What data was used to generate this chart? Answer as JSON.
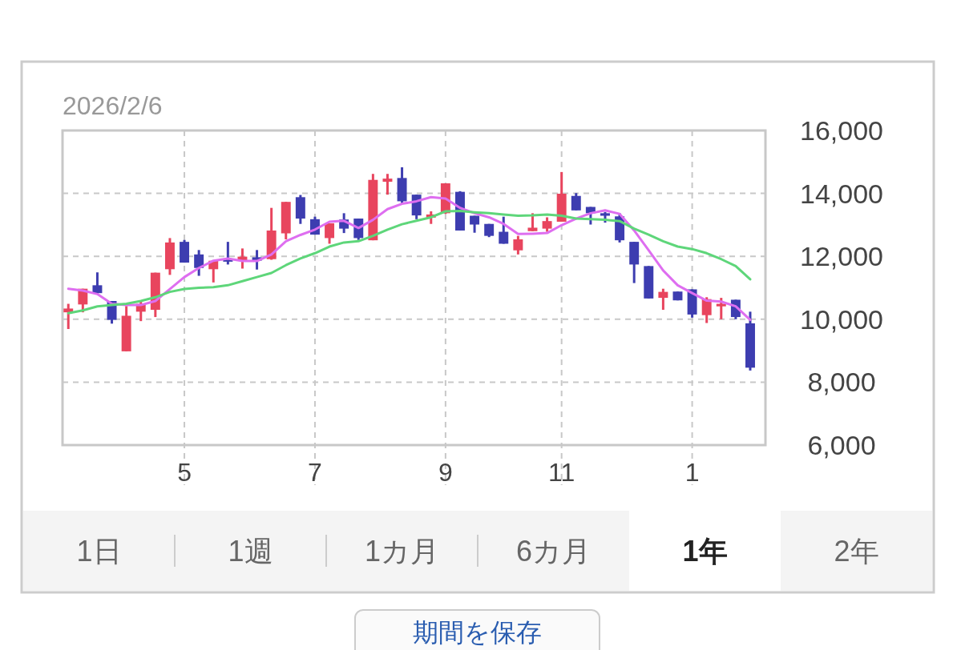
{
  "chart_data": {
    "type": "candlestick",
    "title": "2026/2/6",
    "categories": [
      null,
      null,
      null,
      null,
      null,
      null,
      null,
      null,
      "5",
      null,
      null,
      null,
      null,
      null,
      null,
      null,
      null,
      "7",
      null,
      null,
      null,
      null,
      null,
      null,
      null,
      null,
      "9",
      null,
      null,
      null,
      null,
      null,
      null,
      null,
      "11",
      null,
      null,
      null,
      null,
      null,
      null,
      null,
      null,
      "1",
      null,
      null,
      null,
      null
    ],
    "ohlc": [
      [
        10220,
        10490,
        9690,
        10340
      ],
      [
        10470,
        10970,
        10220,
        10970
      ],
      [
        11080,
        11490,
        10790,
        10830
      ],
      [
        10580,
        10580,
        9860,
        9980
      ],
      [
        8980,
        10420,
        8980,
        10110
      ],
      [
        10240,
        10580,
        9940,
        10490
      ],
      [
        10300,
        11480,
        10070,
        11480
      ],
      [
        11590,
        12580,
        11410,
        12440
      ],
      [
        12460,
        12520,
        11800,
        11800
      ],
      [
        12060,
        12200,
        11380,
        11630
      ],
      [
        11590,
        11860,
        11170,
        11860
      ],
      [
        11910,
        12460,
        11740,
        11830
      ],
      [
        11860,
        12250,
        11610,
        11990
      ],
      [
        11970,
        12200,
        11580,
        11860
      ],
      [
        11910,
        13540,
        11890,
        12820
      ],
      [
        12730,
        13730,
        12540,
        13730
      ],
      [
        13880,
        13950,
        13030,
        13200
      ],
      [
        13180,
        13260,
        12690,
        12690
      ],
      [
        12580,
        13050,
        12400,
        13050
      ],
      [
        13170,
        13370,
        12740,
        12880
      ],
      [
        13200,
        13200,
        12520,
        12580
      ],
      [
        12510,
        14620,
        12510,
        14430
      ],
      [
        14370,
        14620,
        13960,
        14470
      ],
      [
        14490,
        14830,
        13690,
        13750
      ],
      [
        13960,
        13960,
        13180,
        13300
      ],
      [
        13230,
        13430,
        13030,
        13330
      ],
      [
        13370,
        14320,
        13350,
        14320
      ],
      [
        14050,
        14070,
        12820,
        12820
      ],
      [
        13290,
        13290,
        12750,
        13010
      ],
      [
        13030,
        13030,
        12610,
        12650
      ],
      [
        12780,
        13260,
        12400,
        12400
      ],
      [
        12190,
        12650,
        12060,
        12540
      ],
      [
        12800,
        13370,
        12800,
        12910
      ],
      [
        12880,
        13240,
        12780,
        13120
      ],
      [
        13100,
        14680,
        13100,
        13990
      ],
      [
        13920,
        14010,
        13460,
        13460
      ],
      [
        13570,
        13570,
        13010,
        13370
      ],
      [
        13370,
        13410,
        13070,
        13290
      ],
      [
        13270,
        13370,
        12440,
        12510
      ],
      [
        12460,
        12460,
        11150,
        11740
      ],
      [
        11690,
        11690,
        10660,
        10660
      ],
      [
        10680,
        10970,
        10300,
        10870
      ],
      [
        10880,
        10880,
        10600,
        10600
      ],
      [
        10950,
        10950,
        10050,
        10150
      ],
      [
        10130,
        10700,
        9880,
        10640
      ],
      [
        10410,
        10680,
        10000,
        10490
      ],
      [
        10620,
        10620,
        10000,
        10070
      ],
      [
        9870,
        10240,
        8370,
        8460
      ]
    ],
    "colors": [
      "#e8455e",
      "#e8455e",
      "#3d3db0",
      "#3d3db0",
      "#e8455e",
      "#e8455e",
      "#e8455e",
      "#e8455e",
      "#3d3db0",
      "#3d3db0",
      "#e8455e",
      "#3d3db0",
      "#e8455e",
      "#3d3db0",
      "#e8455e",
      "#e8455e",
      "#3d3db0",
      "#3d3db0",
      "#e8455e",
      "#3d3db0",
      "#3d3db0",
      "#e8455e",
      "#e8455e",
      "#3d3db0",
      "#3d3db0",
      "#e8455e",
      "#e8455e",
      "#3d3db0",
      "#3d3db0",
      "#3d3db0",
      "#3d3db0",
      "#e8455e",
      "#e8455e",
      "#e8455e",
      "#e8455e",
      "#3d3db0",
      "#3d3db0",
      "#3d3db0",
      "#3d3db0",
      "#3d3db0",
      "#3d3db0",
      "#e8455e",
      "#3d3db0",
      "#3d3db0",
      "#e8455e",
      "#e8455e",
      "#3d3db0",
      "#3d3db0"
    ],
    "series": [
      {
        "type": "line",
        "color": "#de6ef0",
        "values": [
          10970,
          10910,
          10800,
          10490,
          10450,
          10450,
          10580,
          10960,
          11340,
          11630,
          11860,
          11930,
          11850,
          11850,
          12060,
          12480,
          12680,
          12850,
          13100,
          13130,
          12900,
          13160,
          13500,
          13670,
          13750,
          13880,
          13840,
          13540,
          13370,
          13240,
          13030,
          12710,
          12720,
          12740,
          12990,
          13200,
          13370,
          13460,
          13350,
          12820,
          12190,
          11550,
          11080,
          10830,
          10590,
          10560,
          10410,
          9980
        ]
      },
      {
        "type": "line",
        "color": "#5ed67a",
        "values": [
          10190,
          10280,
          10410,
          10450,
          10490,
          10580,
          10700,
          10870,
          10960,
          11000,
          11020,
          11080,
          11210,
          11340,
          11470,
          11720,
          11930,
          12100,
          12310,
          12440,
          12480,
          12650,
          12850,
          13020,
          13130,
          13240,
          13430,
          13440,
          13400,
          13370,
          13330,
          13290,
          13300,
          13330,
          13290,
          13200,
          13180,
          13160,
          13120,
          12880,
          12690,
          12480,
          12310,
          12230,
          12100,
          11910,
          11690,
          11270
        ]
      }
    ],
    "ylim": [
      6000,
      16000
    ],
    "yticks": [
      {
        "value": 6000,
        "label": "6,000"
      },
      {
        "value": 8000,
        "label": "8,000"
      },
      {
        "value": 10000,
        "label": "10,000"
      },
      {
        "value": 12000,
        "label": "12,000"
      },
      {
        "value": 14000,
        "label": "14,000"
      },
      {
        "value": 16000,
        "label": "16,000"
      }
    ],
    "grid": true,
    "marker": "none",
    "line_style": "solid",
    "annotations": [
      "1日",
      "1週",
      "1カ月",
      "6カ月",
      "1年",
      "2年",
      "期間を保存"
    ]
  }
}
